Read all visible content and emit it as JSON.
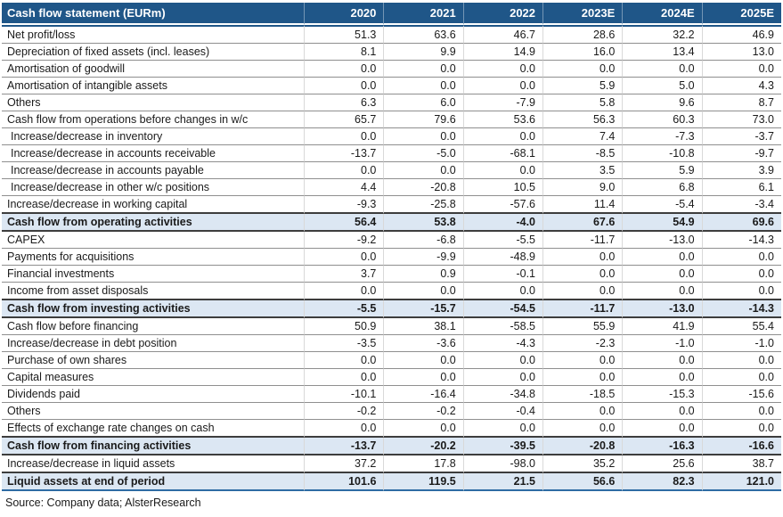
{
  "table": {
    "title": "Cash flow statement (EURm)",
    "columns": [
      "2020",
      "2021",
      "2022",
      "2023E",
      "2024E",
      "2025E"
    ],
    "rows": [
      {
        "label": "Net profit/loss",
        "values": [
          "51.3",
          "63.6",
          "46.7",
          "28.6",
          "32.2",
          "46.9"
        ],
        "style": "normal",
        "indent": false
      },
      {
        "label": "Depreciation of fixed assets (incl. leases)",
        "values": [
          "8.1",
          "9.9",
          "14.9",
          "16.0",
          "13.4",
          "13.0"
        ],
        "style": "normal",
        "indent": false
      },
      {
        "label": "Amortisation of goodwill",
        "values": [
          "0.0",
          "0.0",
          "0.0",
          "0.0",
          "0.0",
          "0.0"
        ],
        "style": "normal",
        "indent": false
      },
      {
        "label": "Amortisation of intangible assets",
        "values": [
          "0.0",
          "0.0",
          "0.0",
          "5.9",
          "5.0",
          "4.3"
        ],
        "style": "normal",
        "indent": false
      },
      {
        "label": "Others",
        "values": [
          "6.3",
          "6.0",
          "-7.9",
          "5.8",
          "9.6",
          "8.7"
        ],
        "style": "normal",
        "indent": false
      },
      {
        "label": "Cash flow from operations before changes in w/c",
        "values": [
          "65.7",
          "79.6",
          "53.6",
          "56.3",
          "60.3",
          "73.0"
        ],
        "style": "normal",
        "indent": false
      },
      {
        "label": "Increase/decrease in inventory",
        "values": [
          "0.0",
          "0.0",
          "0.0",
          "7.4",
          "-7.3",
          "-3.7"
        ],
        "style": "normal",
        "indent": true
      },
      {
        "label": "Increase/decrease in accounts receivable",
        "values": [
          "-13.7",
          "-5.0",
          "-68.1",
          "-8.5",
          "-10.8",
          "-9.7"
        ],
        "style": "normal",
        "indent": true
      },
      {
        "label": "Increase/decrease in accounts payable",
        "values": [
          "0.0",
          "0.0",
          "0.0",
          "3.5",
          "5.9",
          "3.9"
        ],
        "style": "normal",
        "indent": true
      },
      {
        "label": "Increase/decrease in other w/c positions",
        "values": [
          "4.4",
          "-20.8",
          "10.5",
          "9.0",
          "6.8",
          "6.1"
        ],
        "style": "normal",
        "indent": true
      },
      {
        "label": "Increase/decrease in working capital",
        "values": [
          "-9.3",
          "-25.8",
          "-57.6",
          "11.4",
          "-5.4",
          "-3.4"
        ],
        "style": "normal",
        "indent": false
      },
      {
        "label": "Cash flow from operating activities",
        "values": [
          "56.4",
          "53.8",
          "-4.0",
          "67.6",
          "54.9",
          "69.6"
        ],
        "style": "subtotal",
        "indent": false
      },
      {
        "label": "CAPEX",
        "values": [
          "-9.2",
          "-6.8",
          "-5.5",
          "-11.7",
          "-13.0",
          "-14.3"
        ],
        "style": "normal",
        "indent": false
      },
      {
        "label": "Payments for acquisitions",
        "values": [
          "0.0",
          "-9.9",
          "-48.9",
          "0.0",
          "0.0",
          "0.0"
        ],
        "style": "normal",
        "indent": false
      },
      {
        "label": "Financial investments",
        "values": [
          "3.7",
          "0.9",
          "-0.1",
          "0.0",
          "0.0",
          "0.0"
        ],
        "style": "normal",
        "indent": false
      },
      {
        "label": "Income from asset disposals",
        "values": [
          "0.0",
          "0.0",
          "0.0",
          "0.0",
          "0.0",
          "0.0"
        ],
        "style": "normal",
        "indent": false
      },
      {
        "label": "Cash flow from investing activities",
        "values": [
          "-5.5",
          "-15.7",
          "-54.5",
          "-11.7",
          "-13.0",
          "-14.3"
        ],
        "style": "subtotal",
        "indent": false
      },
      {
        "label": "Cash flow before financing",
        "values": [
          "50.9",
          "38.1",
          "-58.5",
          "55.9",
          "41.9",
          "55.4"
        ],
        "style": "normal",
        "indent": false
      },
      {
        "label": "Increase/decrease in debt position",
        "values": [
          "-3.5",
          "-3.6",
          "-4.3",
          "-2.3",
          "-1.0",
          "-1.0"
        ],
        "style": "normal",
        "indent": false
      },
      {
        "label": "Purchase of own shares",
        "values": [
          "0.0",
          "0.0",
          "0.0",
          "0.0",
          "0.0",
          "0.0"
        ],
        "style": "normal",
        "indent": false
      },
      {
        "label": "Capital measures",
        "values": [
          "0.0",
          "0.0",
          "0.0",
          "0.0",
          "0.0",
          "0.0"
        ],
        "style": "normal",
        "indent": false
      },
      {
        "label": "Dividends paid",
        "values": [
          "-10.1",
          "-16.4",
          "-34.8",
          "-18.5",
          "-15.3",
          "-15.6"
        ],
        "style": "normal",
        "indent": false
      },
      {
        "label": "Others",
        "values": [
          "-0.2",
          "-0.2",
          "-0.4",
          "0.0",
          "0.0",
          "0.0"
        ],
        "style": "normal",
        "indent": false
      },
      {
        "label": "Effects of exchange rate changes on cash",
        "values": [
          "0.0",
          "0.0",
          "0.0",
          "0.0",
          "0.0",
          "0.0"
        ],
        "style": "normal",
        "indent": false
      },
      {
        "label": "Cash flow from financing activities",
        "values": [
          "-13.7",
          "-20.2",
          "-39.5",
          "-20.8",
          "-16.3",
          "-16.6"
        ],
        "style": "subtotal",
        "indent": false
      },
      {
        "label": "Increase/decrease in liquid assets",
        "values": [
          "37.2",
          "17.8",
          "-98.0",
          "35.2",
          "25.6",
          "38.7"
        ],
        "style": "normal",
        "indent": false
      },
      {
        "label": "Liquid assets at end of period",
        "values": [
          "101.6",
          "119.5",
          "21.5",
          "56.6",
          "82.3",
          "121.0"
        ],
        "style": "subtotal",
        "indent": false
      }
    ]
  },
  "source": "Source: Company data; AlsterResearch",
  "colors": {
    "header_background": "#1f5688",
    "subtotal_background": "#dce7f3",
    "row_border": "#8f8f8f",
    "table_bottom_border": "#2e6ca4"
  }
}
